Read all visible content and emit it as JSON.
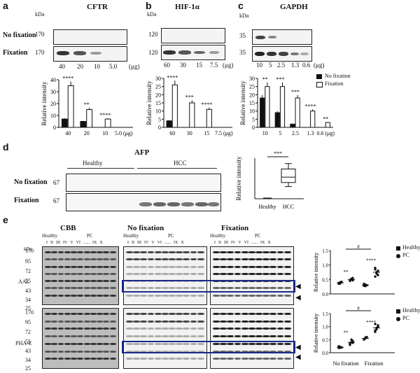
{
  "panels": {
    "a": {
      "letter": "a",
      "title": "CFTR",
      "kda": "kDa",
      "row_labels": [
        "No fixation",
        "Fixation"
      ],
      "mw": [
        "170",
        "170"
      ],
      "lanes": [
        "40",
        "20",
        "10",
        "5.0"
      ],
      "unit": "(μg)"
    },
    "b": {
      "letter": "b",
      "title": "HIF-1α",
      "kda": "kDa",
      "mw": [
        "120",
        "120"
      ],
      "lanes": [
        "60",
        "30",
        "15",
        "7.5"
      ],
      "unit": "(μg)"
    },
    "c": {
      "letter": "c",
      "title": "GAPDH",
      "kda": "kDa",
      "mw": [
        "35",
        "35"
      ],
      "lanes": [
        "10",
        "5",
        "2.5",
        "1.3",
        "0.6"
      ],
      "unit": "(μg)",
      "legend": [
        "No fixation",
        "Fixation"
      ]
    },
    "d": {
      "letter": "d",
      "title": "AFP",
      "row_labels": [
        "No fixation",
        "Fixation"
      ],
      "mw": [
        "67",
        "67"
      ],
      "groups": [
        "Healthy",
        "HCC"
      ],
      "sig": "***",
      "ylabel": "Relative intensity",
      "xcats": [
        "Healthy",
        "HCC"
      ]
    },
    "e": {
      "letter": "e",
      "titles": [
        "CBB",
        "No fixation",
        "Fixation"
      ],
      "kda": "kDa",
      "mw": [
        "170",
        "95",
        "72",
        "55",
        "43",
        "34",
        "25"
      ],
      "groups": [
        "Healthy",
        "PC"
      ],
      "lanes": [
        "I",
        "II",
        "III",
        "IV",
        "V",
        "VI",
        "......",
        "IX",
        "X"
      ],
      "row_labels": [
        "AAL",
        "PHA-E"
      ],
      "legend": [
        "Healthy",
        "PC"
      ],
      "sigs_top": [
        "#",
        "**",
        "****"
      ],
      "sigs_bot": [
        "#",
        "**",
        "****"
      ],
      "xcats": [
        "No fixation",
        "Fixation"
      ],
      "ylabel": "Relative intensity"
    }
  },
  "chart_data": [
    {
      "type": "bar",
      "panel": "a",
      "ylabel": "Relative intensity",
      "ylim": [
        0,
        40
      ],
      "yticks": [
        0,
        10,
        20,
        30,
        40
      ],
      "categories": [
        "40",
        "20",
        "10",
        "5.0 (μg)"
      ],
      "series": [
        {
          "name": "No fixation",
          "values": [
            7,
            5,
            0,
            0
          ]
        },
        {
          "name": "Fixation",
          "values": [
            35,
            15,
            7,
            0
          ]
        }
      ],
      "significance": [
        "****",
        "**",
        "****",
        ""
      ]
    },
    {
      "type": "bar",
      "panel": "b",
      "ylabel": "Relative intensity",
      "ylim": [
        0,
        30
      ],
      "yticks": [
        0,
        5,
        10,
        15,
        20,
        25,
        30
      ],
      "categories": [
        "60",
        "30",
        "15",
        "7.5 (μg)"
      ],
      "series": [
        {
          "name": "No fixation",
          "values": [
            4,
            0,
            0,
            0
          ]
        },
        {
          "name": "Fixation",
          "values": [
            26,
            15,
            11,
            0
          ]
        }
      ],
      "significance": [
        "****",
        "***",
        "****",
        ""
      ]
    },
    {
      "type": "bar",
      "panel": "c",
      "ylabel": "Relative intensity",
      "ylim": [
        0,
        30
      ],
      "yticks": [
        0,
        5,
        10,
        15,
        20,
        25,
        30
      ],
      "categories": [
        "10",
        "5",
        "2.5",
        "1.3",
        "0.6 (μg)"
      ],
      "series": [
        {
          "name": "No fixation",
          "values": [
            18,
            9,
            2,
            0,
            0
          ]
        },
        {
          "name": "Fixation",
          "values": [
            25,
            25,
            18,
            10,
            3
          ]
        }
      ],
      "significance": [
        "**",
        "***",
        "***",
        "****",
        "**"
      ]
    },
    {
      "type": "box",
      "panel": "d",
      "ylabel": "Relative intensity",
      "categories": [
        "Healthy",
        "HCC"
      ],
      "boxes": [
        {
          "name": "Healthy",
          "min": 0,
          "q1": 0,
          "median": 0,
          "q3": 0,
          "max": 0
        },
        {
          "name": "HCC",
          "min": 9,
          "q1": 12,
          "median": 16,
          "q3": 22,
          "max": 26
        }
      ]
    },
    {
      "type": "scatter",
      "panel": "e-AAL",
      "ylabel": "Relative intensity",
      "ylim": [
        0,
        1.5
      ],
      "yticks": [
        0.0,
        0.5,
        1.0,
        1.5
      ],
      "categories": [
        "No fixation",
        "Fixation"
      ],
      "series": [
        {
          "name": "Healthy",
          "group": "No fixation",
          "values": [
            0.35,
            0.4,
            0.42,
            0.38,
            0.36
          ]
        },
        {
          "name": "PC",
          "group": "No fixation",
          "values": [
            0.45,
            0.5,
            0.55,
            0.48,
            0.52,
            0.47
          ]
        },
        {
          "name": "Healthy",
          "group": "Fixation",
          "values": [
            0.28,
            0.32,
            0.3,
            0.35,
            0.27
          ]
        },
        {
          "name": "PC",
          "group": "Fixation",
          "values": [
            0.6,
            0.7,
            0.8,
            0.9,
            0.75,
            0.65,
            0.85
          ]
        }
      ]
    },
    {
      "type": "scatter",
      "panel": "e-PHA-E",
      "ylabel": "Relative intensity",
      "ylim": [
        0,
        1.5
      ],
      "yticks": [
        0.0,
        0.5,
        1.0,
        1.5
      ],
      "categories": [
        "No fixation",
        "Fixation"
      ],
      "series": [
        {
          "name": "Healthy",
          "group": "No fixation",
          "values": [
            0.18,
            0.22,
            0.2,
            0.25,
            0.19
          ]
        },
        {
          "name": "PC",
          "group": "No fixation",
          "values": [
            0.3,
            0.4,
            0.45,
            0.35,
            0.5,
            0.38
          ]
        },
        {
          "name": "Healthy",
          "group": "Fixation",
          "values": [
            0.5,
            0.55,
            0.6,
            0.52,
            0.58
          ]
        },
        {
          "name": "PC",
          "group": "Fixation",
          "values": [
            0.8,
            0.9,
            1.0,
            1.1,
            0.95,
            1.05,
            0.85
          ]
        }
      ]
    }
  ]
}
